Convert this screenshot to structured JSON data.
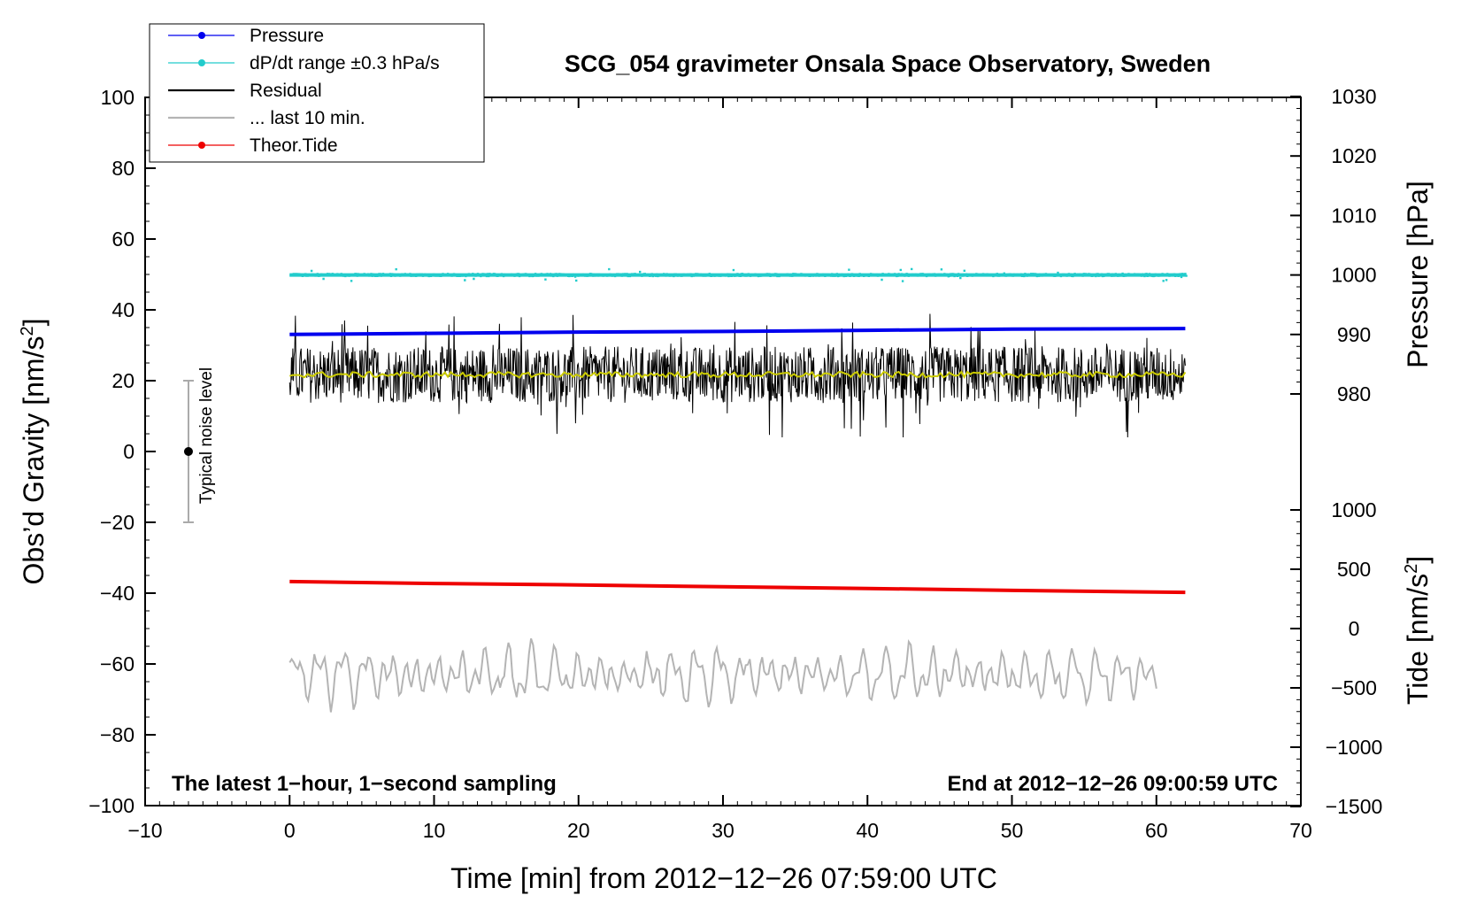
{
  "chart_data": {
    "type": "line",
    "title": "SCG_054 gravimeter Onsala Space Observatory, Sweden",
    "xlabel": "Time [min] from 2012−12−26 07:59:00 UTC",
    "ylabel_left": "Obs’d Gravity [nm/s",
    "ylabel_left_sup": "2",
    "ylabel_left_close": "]",
    "ylabel_right_top": "Pressure [hPa]",
    "ylabel_right_bottom": "Tide [nm/s",
    "ylabel_right_bottom_sup": "2",
    "ylabel_right_bottom_close": "]",
    "xlim": [
      -10,
      70
    ],
    "ylim_left": [
      -100,
      100
    ],
    "x_ticks": [
      "−10",
      "0",
      "10",
      "20",
      "30",
      "40",
      "50",
      "60",
      "70"
    ],
    "y_left_ticks": [
      "100",
      "80",
      "60",
      "40",
      "20",
      "0",
      "−20",
      "−40",
      "−60",
      "−80",
      "−100"
    ],
    "y_right_pressure_ticks": [
      "1030",
      "1020",
      "1010",
      "1000",
      "990",
      "980"
    ],
    "y_right_tide_ticks": [
      "1000",
      "500",
      "0",
      "−500",
      "−1000",
      "−1500"
    ],
    "pressure_range": [
      980,
      1030
    ],
    "tide_range": [
      -1500,
      1000
    ],
    "annotation_left": "The latest 1−hour, 1−second sampling",
    "annotation_right": "End at 2012−12−26 09:00:59 UTC",
    "noise_label": "Typical noise level",
    "noise_bar": {
      "x": -7,
      "center": 0,
      "low": -20,
      "high": 20
    },
    "legend": {
      "placement": "top-left",
      "entries": [
        {
          "label": "Pressure",
          "color": "#0000ee",
          "style": "line-dot"
        },
        {
          "label": "dP/dt range ±0.3 hPa/s",
          "color": "#22cccc",
          "style": "line-dot"
        },
        {
          "label": "Residual",
          "color": "#000000",
          "style": "line"
        },
        {
          "label": "... last 10 min.",
          "color": "#b4b4b4",
          "style": "line"
        },
        {
          "label": "Theor.Tide",
          "color": "#ee0000",
          "style": "line-dot"
        }
      ]
    },
    "series": [
      {
        "name": "Pressure",
        "axis": "pressure",
        "color": "#0000ee",
        "x": [
          0,
          10,
          20,
          30,
          40,
          50,
          62
        ],
        "y": [
          990.0,
          990.2,
          990.4,
          990.5,
          990.7,
          990.9,
          991.0
        ]
      },
      {
        "name": "dP/dt range ±0.3 hPa/s",
        "axis": "pressure",
        "color": "#22cccc",
        "x": [
          0,
          62
        ],
        "y": [
          1000,
          1000
        ],
        "spread": 0.3
      },
      {
        "name": "Residual",
        "axis": "gravity",
        "color": "#000000",
        "x": [
          0,
          62
        ],
        "y": [
          21.5,
          22
        ],
        "noise_amplitude": 10,
        "min": 4,
        "max": 41
      },
      {
        "name": "smoothed residual",
        "axis": "gravity",
        "color": "#cccc00",
        "x": [
          0,
          62
        ],
        "y": [
          21.5,
          22
        ]
      },
      {
        "name": "... last 10 min.",
        "axis": "gravity",
        "color": "#b4b4b4",
        "x": [
          0,
          60
        ],
        "y": [
          -63,
          -63
        ],
        "min": -76,
        "max": -48
      },
      {
        "name": "Theor.Tide",
        "axis": "tide",
        "color": "#ee0000",
        "x": [
          0,
          10,
          20,
          30,
          40,
          50,
          62
        ],
        "y": [
          396,
          380,
          368,
          352,
          338,
          322,
          305
        ]
      }
    ],
    "grid": false
  },
  "colors": {
    "pressure": "#0000ee",
    "dpdt": "#22cccc",
    "residual": "#000000",
    "smoothed": "#cccc00",
    "last10": "#b4b4b4",
    "tide": "#ee0000"
  }
}
